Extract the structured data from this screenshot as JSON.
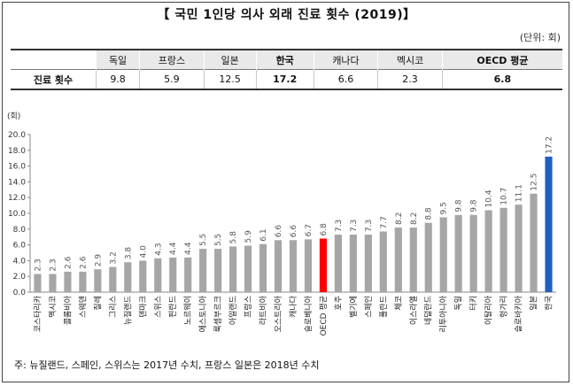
{
  "title": "【 국민 1인당 의사 외래 진료 횟수 (2019)】",
  "unit": "(단위: 회)",
  "summary": {
    "headers": [
      "",
      "독일",
      "프랑스",
      "일본",
      "한국",
      "캐나다",
      "멕시코",
      "OECD 평균"
    ],
    "row_label": "진료 횟수",
    "values": [
      "9.8",
      "5.9",
      "12.5",
      "17.2",
      "6.6",
      "2.3",
      "6.8"
    ]
  },
  "note": "주: 뉴질랜드, 스페인, 스위스는 2017년 수치, 프랑스 일본은 2018년 수치",
  "chart_data": {
    "type": "bar",
    "ylabel": "(회)",
    "ylim": [
      0,
      20
    ],
    "yticks": [
      "0.0",
      "2.0",
      "4.0",
      "6.0",
      "8.0",
      "10.0",
      "12.0",
      "14.0",
      "16.0",
      "18.0",
      "20.0"
    ],
    "categories": [
      "코스타리카",
      "멕시코",
      "콜롬비아",
      "스웨덴",
      "칠레",
      "그리스",
      "뉴질랜드",
      "덴마크",
      "스위스",
      "핀란드",
      "노르웨이",
      "에스토니아",
      "룩셈부르크",
      "아일랜드",
      "프랑스",
      "라트비아",
      "오스트리아",
      "캐나다",
      "슬로베니아",
      "OECD 평균",
      "호주",
      "벨기에",
      "스페인",
      "폴란드",
      "체코",
      "이스라엘",
      "네덜란드",
      "리투아니아",
      "독일",
      "터키",
      "이탈리아",
      "헝가리",
      "슬로바키아",
      "일본",
      "한국"
    ],
    "values": [
      2.3,
      2.3,
      2.6,
      2.6,
      2.9,
      3.2,
      3.8,
      4.0,
      4.3,
      4.4,
      4.4,
      5.5,
      5.5,
      5.8,
      5.9,
      6.1,
      6.6,
      6.6,
      6.7,
      6.8,
      7.3,
      7.3,
      7.3,
      7.7,
      8.2,
      8.2,
      8.8,
      9.5,
      9.8,
      9.8,
      10.4,
      10.7,
      11.1,
      12.5,
      17.2
    ],
    "colors": {
      "default": "#a6a6a6",
      "oecd": "#ff0000",
      "korea": "#1f5fbf"
    },
    "highlight": {
      "OECD 평균": "oecd",
      "한국": "korea"
    },
    "grid": false
  }
}
